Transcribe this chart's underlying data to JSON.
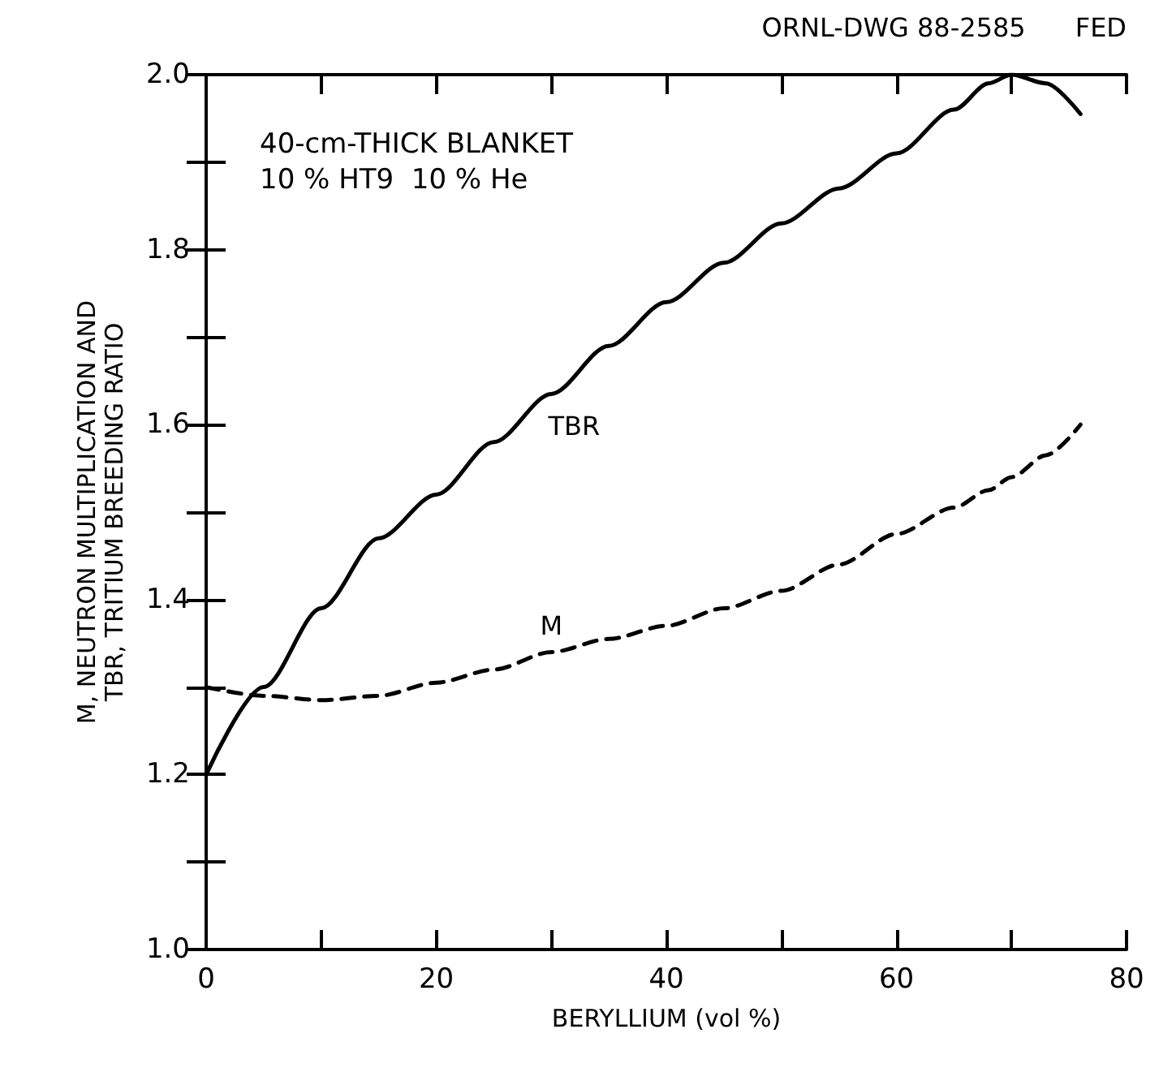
{
  "chart_data": {
    "type": "line",
    "xlabel": "BERYLLIUM (vol %)",
    "ylabel": "M, NEUTRON MULTIPLICATION AND\nTBR, TRITIUM BREEDING RATIO",
    "annotations": [
      "ORNL-DWG 88-2585      FED",
      "40-cm-THICK BLANKET\n10 % HT9  10 % He"
    ],
    "x": [
      0,
      5,
      10,
      15,
      20,
      25,
      30,
      35,
      40,
      45,
      50,
      55,
      60,
      65,
      68,
      70,
      73,
      76
    ],
    "series": [
      {
        "name": "TBR",
        "color": "#000000",
        "line_style": "solid",
        "values": [
          1.2,
          1.3,
          1.39,
          1.47,
          1.52,
          1.58,
          1.635,
          1.69,
          1.74,
          1.785,
          1.83,
          1.87,
          1.91,
          1.96,
          1.99,
          2.0,
          1.99,
          1.955
        ]
      },
      {
        "name": "M",
        "color": "#000000",
        "line_style": "dashed",
        "values": [
          1.3,
          1.29,
          1.285,
          1.29,
          1.305,
          1.32,
          1.34,
          1.355,
          1.37,
          1.39,
          1.41,
          1.44,
          1.475,
          1.505,
          1.525,
          1.54,
          1.565,
          1.6
        ]
      }
    ],
    "xlim": [
      0,
      80
    ],
    "ylim": [
      1.0,
      2.0
    ],
    "xticks": [
      0,
      {
        "value": 10,
        "label": null
      },
      20,
      {
        "value": 30,
        "label": null
      },
      40,
      {
        "value": 50,
        "label": null
      },
      60,
      {
        "value": 70,
        "label": null
      },
      80
    ],
    "yticks": [
      {
        "value": 1.0,
        "label": "1.0"
      },
      {
        "value": 1.1,
        "label": null
      },
      1.2,
      {
        "value": 1.3,
        "label": null
      },
      1.4,
      {
        "value": 1.5,
        "label": null
      },
      1.6,
      {
        "value": 1.7,
        "label": null
      },
      1.8,
      {
        "value": 1.9,
        "label": null
      },
      {
        "value": 2.0,
        "label": "2.0"
      }
    ],
    "grid": false,
    "legend": false,
    "marker": "none"
  }
}
